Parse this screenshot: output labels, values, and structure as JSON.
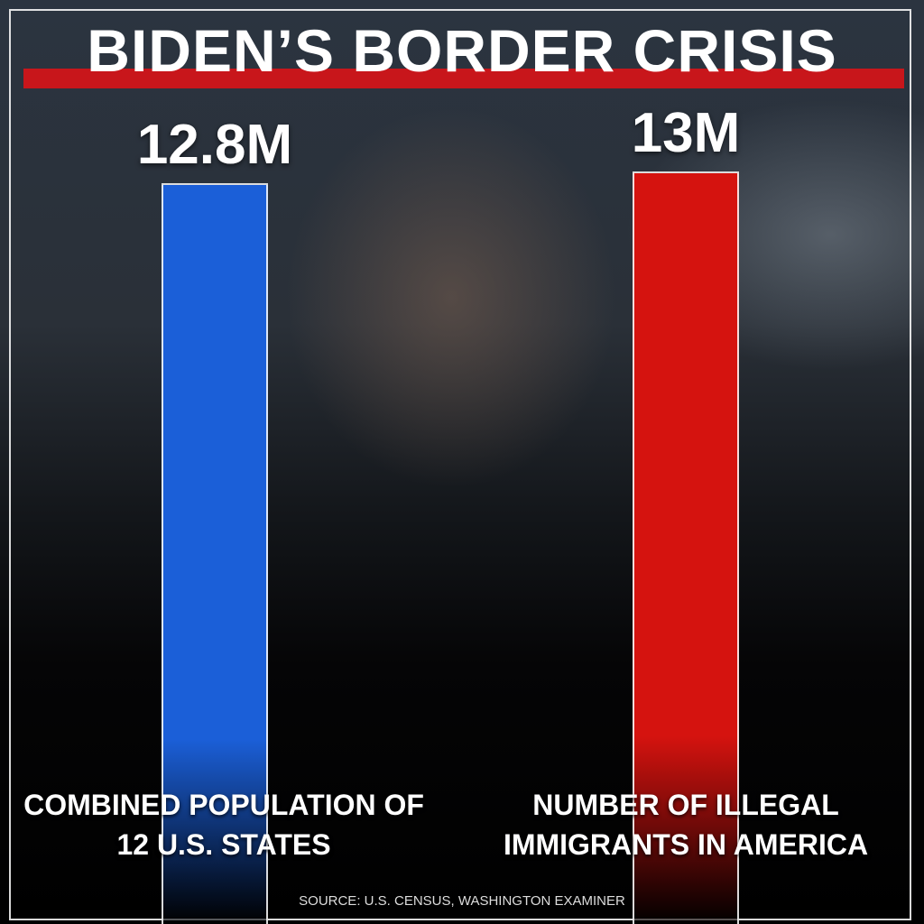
{
  "chart_data": {
    "type": "bar",
    "title": "BIDEN’S BORDER CRISIS",
    "categories": [
      "COMBINED POPULATION OF 12 U.S. STATES",
      "NUMBER OF ILLEGAL IMMIGRANTS IN AMERICA"
    ],
    "values": [
      12.8,
      13
    ],
    "value_labels": [
      "12.8M",
      "13M"
    ],
    "colors": [
      "#1b5fd8",
      "#d5130f"
    ],
    "source": "SOURCE: U.S. CENSUS, WASHINGTON EXAMINER"
  }
}
